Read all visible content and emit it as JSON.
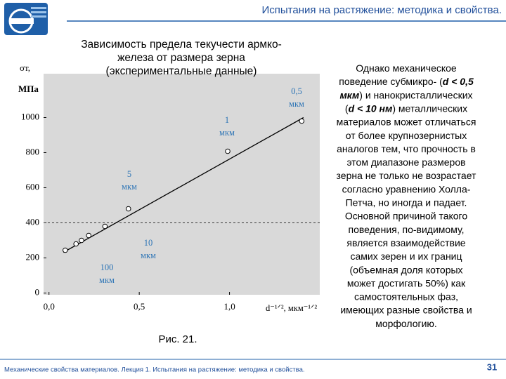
{
  "header": {
    "title": "Испытания на растяжение: методика и свойства."
  },
  "chart_data": {
    "type": "scatter",
    "title": [
      "Зависимость предела текучести армко-",
      "железа от размера зерна",
      "(экспериментальные данные)"
    ],
    "y_label": [
      "σт,",
      "МПа"
    ],
    "x_label": "d⁻¹ᐟ², мкм⁻¹ᐟ²",
    "x": [
      0.09,
      0.15,
      0.18,
      0.22,
      0.31,
      0.44,
      0.99,
      1.4
    ],
    "values": [
      244,
      280,
      300,
      328,
      380,
      480,
      808,
      980
    ],
    "color": "#ffffff",
    "fit_line": {
      "x": [
        0.08,
        1.41
      ],
      "values": [
        232,
        1000
      ]
    },
    "reference_line": 400,
    "xlim": [
      -0.03,
      1.5
    ],
    "ylim": [
      -10,
      1250
    ],
    "xticks": [
      {
        "value": 0,
        "label": "0,0"
      },
      {
        "value": 0.5,
        "label": "0,5"
      },
      {
        "value": 1,
        "label": "1,0"
      }
    ],
    "yticks": [
      0,
      200,
      400,
      600,
      800,
      1000
    ],
    "annotations": [
      [
        "0,5",
        "мкм"
      ],
      [
        "1",
        "мкм"
      ],
      [
        "5",
        "мкм"
      ],
      [
        "10",
        "мкм"
      ],
      [
        "100",
        "мкм"
      ]
    ],
    "background": "#d9d9d9"
  },
  "caption": "Рис. 21.",
  "paragraph": [
    [
      "Однако механическое"
    ],
    [
      "поведение субмикро- (",
      {
        "bold": "d < 0,5"
      }
    ],
    [
      {
        "bold": "мкм"
      },
      ") и нанокристаллических"
    ],
    [
      "(",
      {
        "bold": "d < 10 нм"
      },
      ") металлических"
    ],
    [
      "материалов может отличаться"
    ],
    [
      "от более крупнозернистых"
    ],
    [
      "аналогов тем, что прочность в"
    ],
    [
      "этом диапазоне размеров"
    ],
    [
      "зерна не только не возрастает"
    ],
    [
      "согласно уравнению Холла-"
    ],
    [
      "Петча, но иногда и падает."
    ],
    [
      "Основной причиной такого"
    ],
    [
      "поведения, по-видимому,"
    ],
    [
      "является взаимодействие"
    ],
    [
      "самих зерен и их границ"
    ],
    [
      "(объемная доля которых"
    ],
    [
      "может достигать 50%) как"
    ],
    [
      "самостоятельных фаз,"
    ],
    [
      "имеющих разные свойства и"
    ],
    [
      "морфологию."
    ]
  ],
  "footer": {
    "text": "Механические свойства материалов. Лекция 1. Испытания на растяжение: методика и свойства.",
    "page": "31"
  }
}
